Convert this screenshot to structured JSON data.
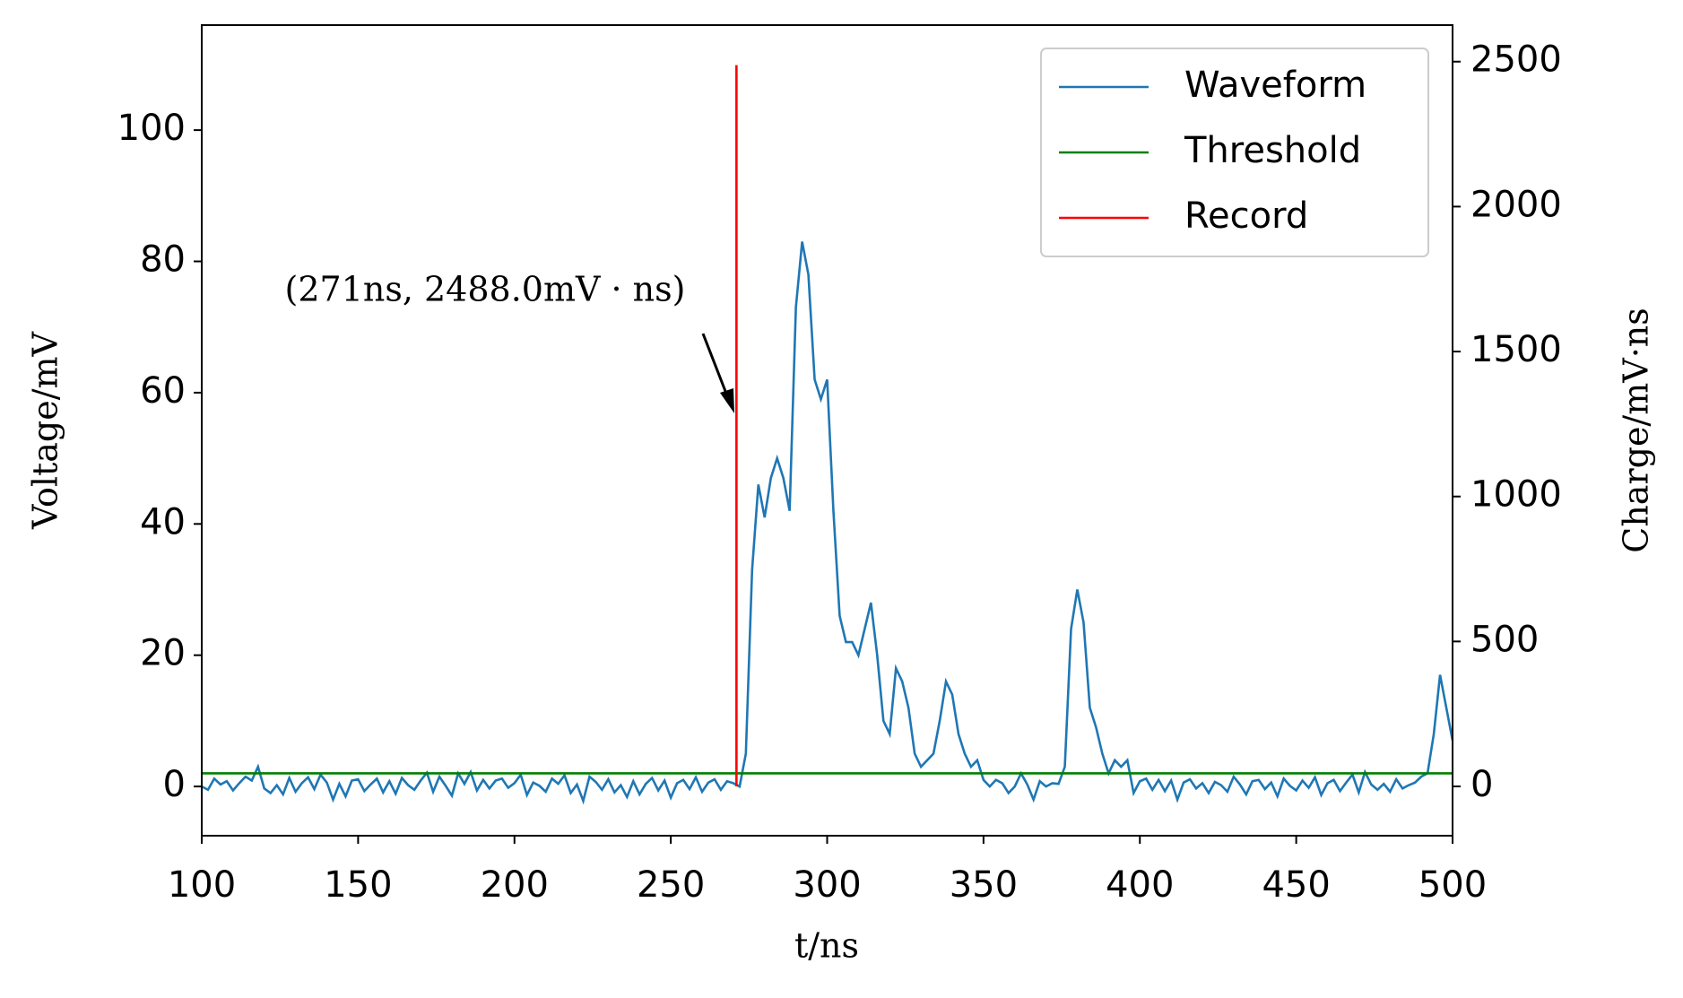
{
  "chart_data": {
    "type": "line",
    "xlabel": "t/ns",
    "ylabel": "Voltage/mV",
    "y2label": "Charge/mV·ns",
    "annotation": "(271ns, 2488.0mV · ns)",
    "xlim": [
      100,
      500
    ],
    "xticks": [
      100,
      150,
      200,
      250,
      300,
      350,
      400,
      450,
      500
    ],
    "ylim": [
      -7.5,
      116
    ],
    "yticks": [
      0,
      20,
      40,
      60,
      80,
      100
    ],
    "y2lim": [
      -170,
      2626
    ],
    "y2ticks": [
      0,
      500,
      1000,
      1500,
      2000,
      2500
    ],
    "legend": "upper right",
    "series": [
      {
        "name": "Waveform",
        "color": "#1f77b4",
        "x": [
          100,
          102,
          104,
          106,
          108,
          110,
          112,
          114,
          116,
          118,
          120,
          122,
          124,
          126,
          128,
          130,
          132,
          134,
          136,
          138,
          140,
          142,
          144,
          146,
          148,
          150,
          152,
          154,
          156,
          158,
          160,
          162,
          164,
          166,
          168,
          170,
          172,
          174,
          176,
          178,
          180,
          182,
          184,
          186,
          188,
          190,
          192,
          194,
          196,
          198,
          200,
          202,
          204,
          206,
          208,
          210,
          212,
          214,
          216,
          218,
          220,
          222,
          224,
          226,
          228,
          230,
          232,
          234,
          236,
          238,
          240,
          242,
          244,
          246,
          248,
          250,
          252,
          254,
          256,
          258,
          260,
          262,
          264,
          266,
          268,
          270,
          272,
          274,
          276,
          278,
          280,
          282,
          284,
          286,
          288,
          290,
          292,
          294,
          296,
          298,
          300,
          302,
          304,
          306,
          308,
          310,
          312,
          314,
          316,
          318,
          320,
          322,
          324,
          326,
          328,
          330,
          332,
          334,
          336,
          338,
          340,
          342,
          344,
          346,
          348,
          350,
          352,
          354,
          356,
          358,
          360,
          362,
          364,
          366,
          368,
          370,
          372,
          374,
          376,
          378,
          380,
          382,
          384,
          386,
          388,
          390,
          392,
          394,
          396,
          398,
          400,
          402,
          404,
          406,
          408,
          410,
          412,
          414,
          416,
          418,
          420,
          422,
          424,
          426,
          428,
          430,
          432,
          434,
          436,
          438,
          440,
          442,
          444,
          446,
          448,
          450,
          452,
          454,
          456,
          458,
          460,
          462,
          464,
          466,
          468,
          470,
          472,
          474,
          476,
          478,
          480,
          482,
          484,
          486,
          488,
          490,
          492,
          494,
          496,
          498,
          500
        ],
        "values": [
          0,
          -0.5,
          1.2,
          0.3,
          0.8,
          -0.6,
          0.5,
          1.5,
          0.9,
          3.0,
          -0.3,
          -1.0,
          0.2,
          -1.2,
          1.3,
          -0.8,
          0.5,
          1.4,
          -0.4,
          1.8,
          0.6,
          -2.0,
          0.4,
          -1.5,
          0.9,
          1.1,
          -0.7,
          0.3,
          1.2,
          -0.9,
          0.8,
          -1.1,
          1.3,
          0.2,
          -0.5,
          0.9,
          2.1,
          -0.8,
          1.5,
          0.1,
          -1.4,
          2.0,
          0.4,
          2.2,
          -0.6,
          1.0,
          -0.3,
          0.9,
          1.2,
          -0.2,
          0.5,
          1.8,
          -1.3,
          0.6,
          0.1,
          -0.8,
          1.2,
          0.4,
          1.7,
          -1.0,
          0.3,
          -2.2,
          1.5,
          0.7,
          -0.5,
          1.1,
          -0.9,
          0.2,
          -1.6,
          0.8,
          -1.2,
          0.4,
          1.3,
          -0.6,
          0.9,
          -1.7,
          0.5,
          1.0,
          -0.4,
          1.4,
          -0.8,
          0.6,
          1.1,
          -0.5,
          0.8,
          0.5,
          0,
          5,
          33,
          46,
          41,
          47,
          50,
          47,
          42,
          73,
          83,
          78,
          62,
          59,
          62,
          42,
          26,
          22,
          22,
          20,
          24,
          28,
          20,
          10,
          8,
          18,
          16,
          12,
          5,
          3,
          4,
          5,
          10,
          16,
          14,
          8,
          5,
          3,
          4,
          1,
          0,
          1,
          0.5,
          -1,
          0,
          2,
          0.3,
          -2,
          0.8,
          0,
          0.5,
          0.4,
          3,
          24,
          30,
          25,
          12,
          9,
          5,
          2,
          4,
          3,
          4,
          -1,
          0.8,
          1.2,
          -0.5,
          1.0,
          -0.7,
          0.9,
          -2.0,
          0.6,
          1.1,
          -0.3,
          0.5,
          -1.0,
          0.7,
          0.2,
          -0.8,
          1.5,
          0.3,
          -1.2,
          0.8,
          1.0,
          -0.4,
          0.6,
          -1.5,
          1.2,
          0.1,
          -0.6,
          0.9,
          -0.2,
          1.4,
          -1.3,
          0.5,
          1.0,
          -0.7,
          0.6,
          1.8,
          -0.9,
          2.2,
          0.3,
          -0.5,
          0.4,
          -0.8,
          1.1,
          -0.3,
          0.2,
          0.6,
          1.5,
          2.0,
          8,
          17,
          12,
          7
        ]
      },
      {
        "name": "Threshold",
        "color": "#008000",
        "x": [
          100,
          500
        ],
        "values": [
          2,
          2
        ]
      },
      {
        "name": "Record",
        "color": "#ff0000",
        "axis": "y2",
        "x": [
          271,
          271
        ],
        "values": [
          0,
          2488
        ]
      }
    ]
  }
}
